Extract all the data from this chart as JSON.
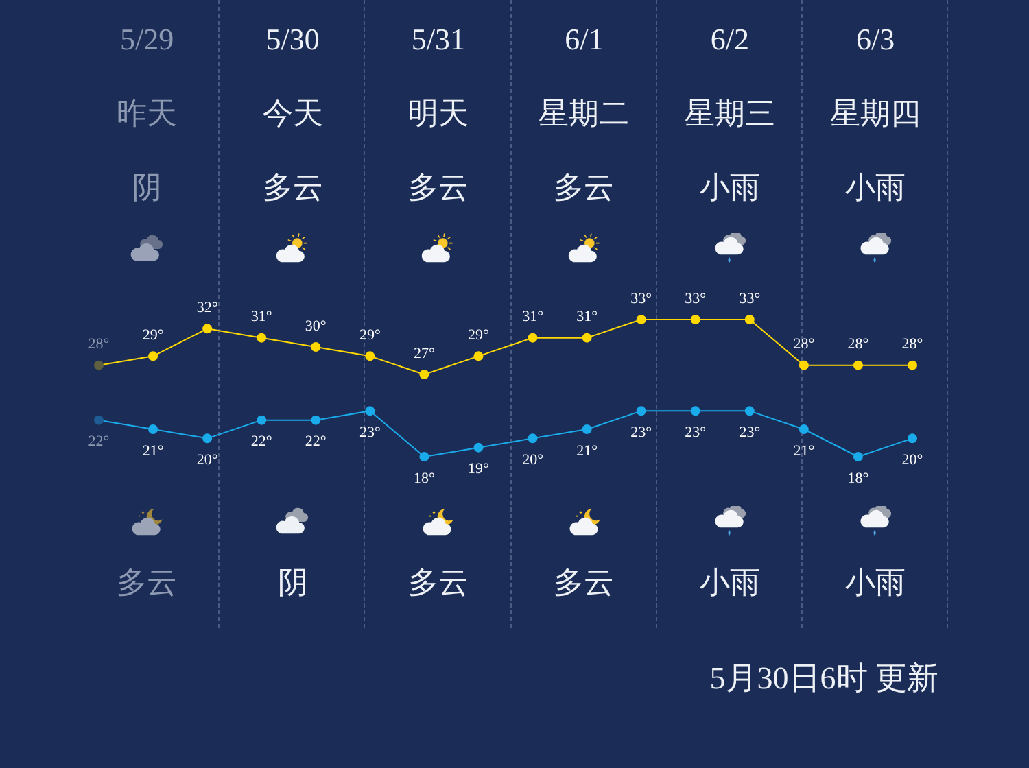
{
  "chart_data": {
    "type": "line",
    "categories": [
      null,
      null,
      null,
      null,
      null,
      null,
      null,
      null,
      null,
      null,
      null,
      null,
      null,
      null,
      null,
      null
    ],
    "series": [
      {
        "color": "#ffd800",
        "colors": [
          "#5f6042",
          "#ffd800",
          "#ffd800",
          "#ffd800",
          "#ffd800",
          "#ffd800",
          "#ffd800",
          "#ffd800",
          "#ffd800",
          "#ffd800",
          "#ffd800",
          "#ffd800",
          "#ffd800",
          "#ffd800",
          "#ffd800",
          "#ffd800"
        ],
        "values": [
          28,
          29,
          32,
          31,
          30,
          29,
          27,
          29,
          31,
          31,
          33,
          33,
          33,
          28,
          28,
          28
        ],
        "value_labels": [
          "28°",
          "29°",
          "32°",
          "31°",
          "30°",
          "29°",
          "27°",
          "29°",
          "31°",
          "31°",
          "33°",
          "33°",
          "33°",
          "28°",
          "28°",
          "28°"
        ]
      },
      {
        "color": "#1aabeb",
        "colors": [
          "#1f5d94",
          "#1aabeb",
          "#1aabeb",
          "#1aabeb",
          "#1aabeb",
          "#1aabeb",
          "#1aabeb",
          "#1aabeb",
          "#1aabeb",
          "#1aabeb",
          "#1aabeb",
          "#1aabeb",
          "#1aabeb",
          "#1aabeb",
          "#1aabeb",
          "#1aabeb"
        ],
        "values": [
          22,
          21,
          20,
          22,
          22,
          23,
          18,
          19,
          20,
          21,
          23,
          23,
          23,
          21,
          18,
          20
        ],
        "value_labels": [
          "22°",
          "21°",
          "20°",
          "22°",
          "22°",
          "23°",
          "18°",
          "19°",
          "20°",
          "21°",
          "23°",
          "23°",
          "23°",
          "21°",
          "18°",
          "20°"
        ]
      }
    ],
    "marker": "circle",
    "tick_labels": false,
    "annotations": [
      "5/29",
      "5/30",
      "5/31",
      "6/1",
      "6/2",
      "6/3",
      "昨天",
      "今天",
      "明天",
      "星期二",
      "星期三",
      "星期四",
      "阴",
      "多云",
      "多云",
      "多云",
      "小雨",
      "小雨",
      "多云",
      "阴",
      "多云",
      "多云",
      "小雨",
      "小雨",
      "5月30日6时 更新"
    ]
  }
}
